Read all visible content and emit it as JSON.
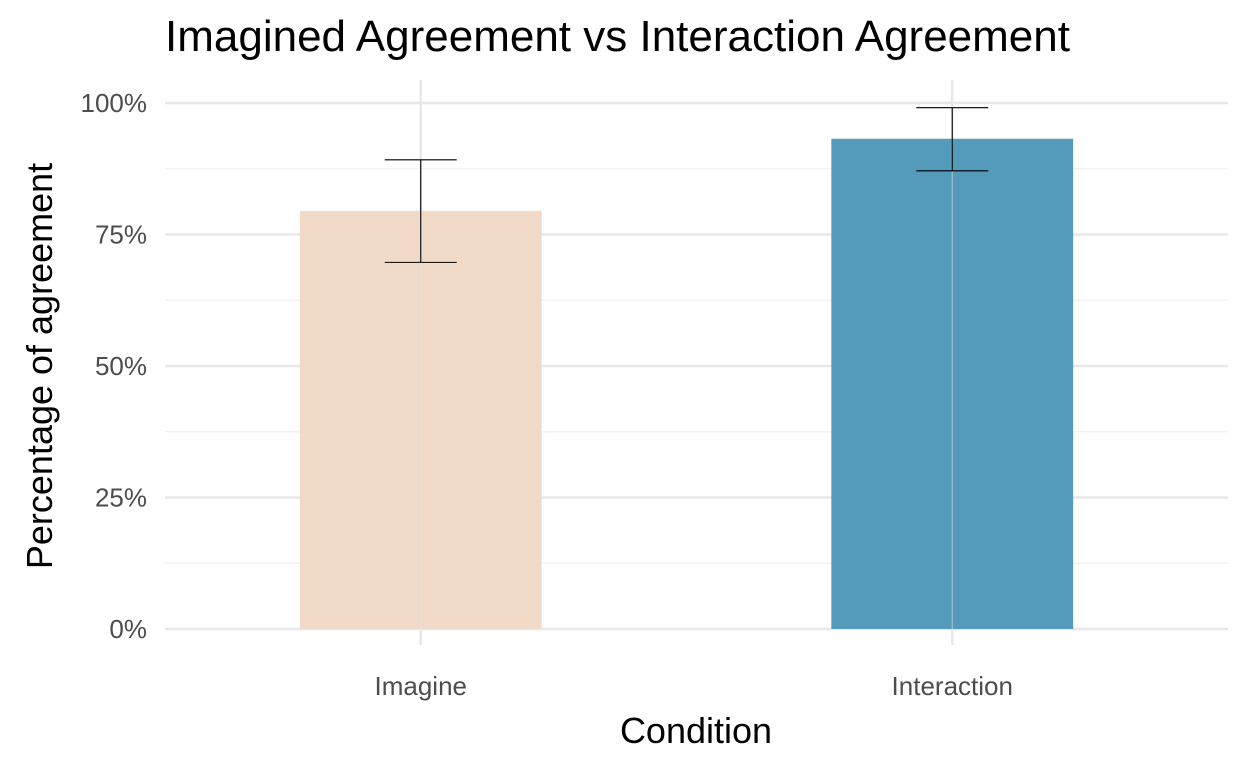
{
  "chart_data": {
    "type": "bar",
    "title": "Imagined Agreement vs Interaction Agreement",
    "xlabel": "Condition",
    "ylabel": "Percentage of agreement",
    "categories": [
      "Imagine",
      "Interaction"
    ],
    "values": [
      0.795,
      0.932
    ],
    "error_bars": [
      {
        "lower": 0.697,
        "upper": 0.892
      },
      {
        "lower": 0.871,
        "upper": 0.991
      }
    ],
    "colors": [
      "#f2d9c6",
      "#4e97b8"
    ],
    "ylim": [
      0,
      1
    ],
    "yticks": [
      0,
      0.25,
      0.5,
      0.75,
      1.0
    ],
    "ytick_labels": [
      "0%",
      "25%",
      "50%",
      "75%",
      "100%"
    ],
    "grid": true,
    "legend": "none"
  }
}
